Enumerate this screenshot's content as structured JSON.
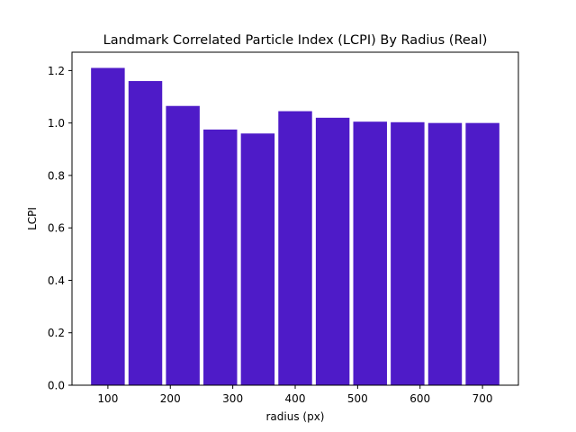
{
  "chart_data": {
    "type": "bar",
    "title": "Landmark Correlated Particle Index (LCPI) By Radius (Real)",
    "xlabel": "radius (px)",
    "ylabel": "LCPI",
    "x": [
      100,
      160,
      220,
      280,
      340,
      400,
      460,
      520,
      580,
      640,
      700
    ],
    "values": [
      1.21,
      1.16,
      1.065,
      0.975,
      0.96,
      1.045,
      1.02,
      1.005,
      1.003,
      1.0,
      1.0
    ],
    "bar_width": 54,
    "xlim": [
      42.5,
      757.5
    ],
    "ylim": [
      0,
      1.27
    ],
    "xticks": [
      100,
      200,
      300,
      400,
      500,
      600,
      700
    ],
    "yticks": [
      0.0,
      0.2,
      0.4,
      0.6,
      0.8,
      1.0,
      1.2
    ],
    "bar_color": "#4e1bc8",
    "grid": false,
    "legend": "none"
  }
}
